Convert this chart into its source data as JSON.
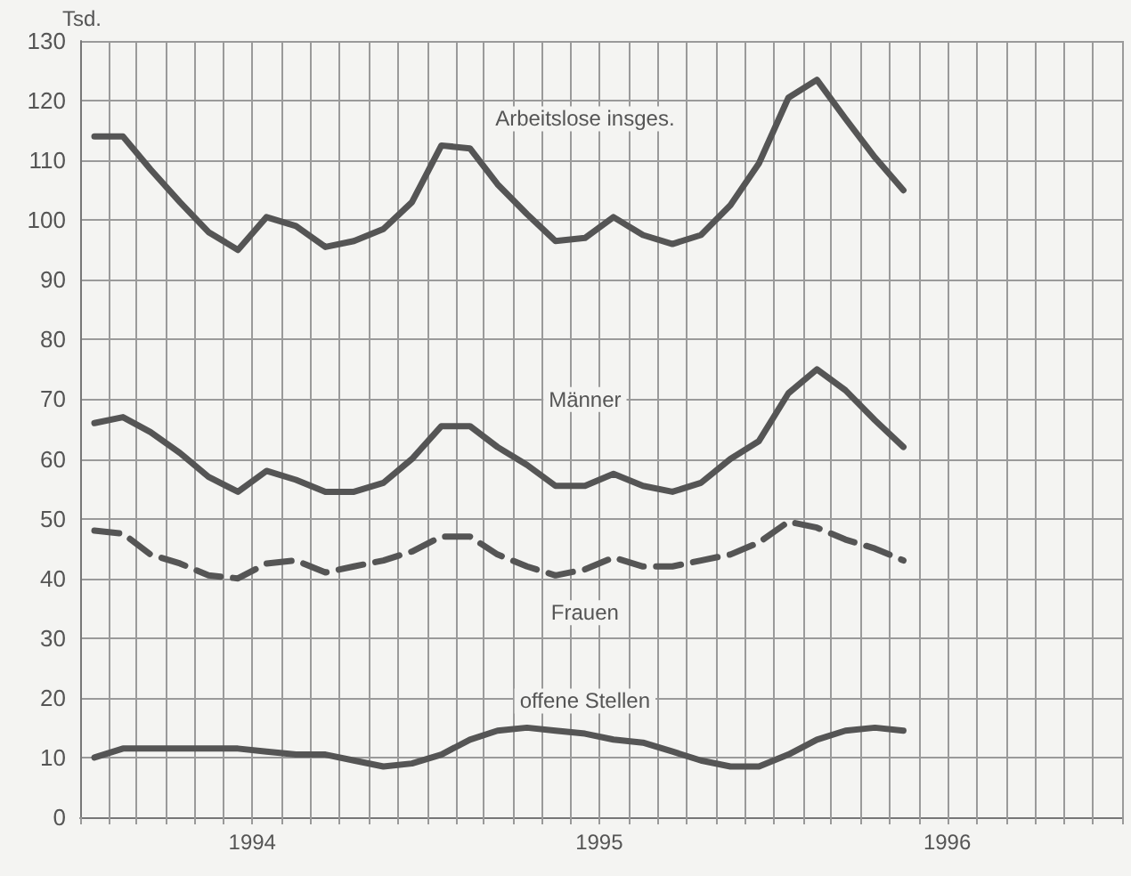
{
  "chart_data": {
    "type": "line",
    "ylabel": "Tsd.",
    "x": [
      "1994-01-16",
      "1994-02-15",
      "1994-03-16",
      "1994-04-16",
      "1994-05-16",
      "1994-06-16",
      "1994-07-16",
      "1994-08-16",
      "1994-09-16",
      "1994-10-16",
      "1994-11-16",
      "1994-12-16",
      "1995-01-16",
      "1995-02-15",
      "1995-03-16",
      "1995-04-16",
      "1995-05-16",
      "1995-06-16",
      "1995-07-16",
      "1995-08-16",
      "1995-09-16",
      "1995-10-16",
      "1995-11-16",
      "1995-12-16",
      "1996-01-16",
      "1996-02-15",
      "1996-03-16",
      "1996-04-16",
      "1996-05-16"
    ],
    "series": [
      {
        "name": "Arbeitslose insges.",
        "color": "#555555",
        "values": [
          114,
          114,
          108.5,
          103,
          98,
          95,
          100.5,
          99,
          95.5,
          96.5,
          98.5,
          103,
          112.5,
          112,
          106,
          101,
          96.5,
          97,
          100.5,
          97.5,
          96,
          97.5,
          102.5,
          109.5,
          120.5,
          123.5,
          117,
          110.5,
          105
        ]
      },
      {
        "name": "Männer",
        "color": "#555555",
        "values": [
          66,
          67,
          64.5,
          61,
          57,
          54.5,
          58,
          56.5,
          54.5,
          54.5,
          56,
          60,
          65.5,
          65.5,
          62,
          59,
          55.5,
          55.5,
          57.5,
          55.5,
          54.5,
          56,
          60,
          63,
          71,
          75,
          71.5,
          66.5,
          62
        ]
      },
      {
        "name": "Frauen",
        "color": "#555555",
        "line_style": "dashed",
        "values": [
          48,
          47.5,
          44,
          42.5,
          40.5,
          40,
          42.5,
          43,
          41,
          42,
          43,
          44.5,
          47,
          47,
          44,
          42,
          40.5,
          41.5,
          43.5,
          42,
          42,
          43,
          44,
          46,
          49.5,
          48.5,
          46.5,
          45,
          43
        ]
      },
      {
        "name": "offene Stellen",
        "color": "#555555",
        "values": [
          10,
          11.5,
          11.5,
          11.5,
          11.5,
          11.5,
          11,
          10.5,
          10.5,
          9.5,
          8.5,
          9,
          10.5,
          13,
          14.5,
          15,
          14.5,
          14,
          13,
          12.5,
          11,
          9.5,
          8.5,
          8.5,
          10.5,
          13,
          14.5,
          15,
          14.5
        ]
      }
    ],
    "xlim": [
      "1994-01-01",
      "1997-01-01"
    ],
    "xticks": [
      {
        "value": "1994-01-01",
        "label": null
      },
      {
        "value": "1994-02-01",
        "label": null
      },
      {
        "value": "1994-03-01",
        "label": null
      },
      {
        "value": "1994-04-01",
        "label": null
      },
      {
        "value": "1994-05-01",
        "label": null
      },
      {
        "value": "1994-06-01",
        "label": null
      },
      {
        "value": "1994-07-01",
        "label": "1994"
      },
      {
        "value": "1994-08-01",
        "label": null
      },
      {
        "value": "1994-09-01",
        "label": null
      },
      {
        "value": "1994-10-01",
        "label": null
      },
      {
        "value": "1994-11-01",
        "label": null
      },
      {
        "value": "1994-12-01",
        "label": null
      },
      {
        "value": "1995-01-01",
        "label": null
      },
      {
        "value": "1995-02-01",
        "label": null
      },
      {
        "value": "1995-03-01",
        "label": null
      },
      {
        "value": "1995-04-01",
        "label": null
      },
      {
        "value": "1995-05-01",
        "label": null
      },
      {
        "value": "1995-06-01",
        "label": null
      },
      {
        "value": "1995-07-01",
        "label": "1995"
      },
      {
        "value": "1995-08-01",
        "label": null
      },
      {
        "value": "1995-09-01",
        "label": null
      },
      {
        "value": "1995-10-01",
        "label": null
      },
      {
        "value": "1995-11-01",
        "label": null
      },
      {
        "value": "1995-12-01",
        "label": null
      },
      {
        "value": "1996-01-01",
        "label": null
      },
      {
        "value": "1996-02-01",
        "label": null
      },
      {
        "value": "1996-03-01",
        "label": null
      },
      {
        "value": "1996-04-01",
        "label": null
      },
      {
        "value": "1996-05-01",
        "label": null
      },
      {
        "value": "1996-06-01",
        "label": null
      },
      {
        "value": "1996-07-01",
        "label": "1996"
      },
      {
        "value": "1996-08-01",
        "label": null
      },
      {
        "value": "1996-09-01",
        "label": null
      },
      {
        "value": "1996-10-01",
        "label": null
      },
      {
        "value": "1996-11-01",
        "label": null
      },
      {
        "value": "1996-12-01",
        "label": null
      },
      {
        "value": "1997-01-01",
        "label": null
      }
    ],
    "ylim": [
      0,
      130
    ],
    "yticks": [
      0,
      10,
      20,
      30,
      40,
      50,
      60,
      70,
      80,
      90,
      100,
      110,
      120,
      130
    ],
    "grid": true,
    "legend": false,
    "marker": "none",
    "line_style": "solid"
  }
}
